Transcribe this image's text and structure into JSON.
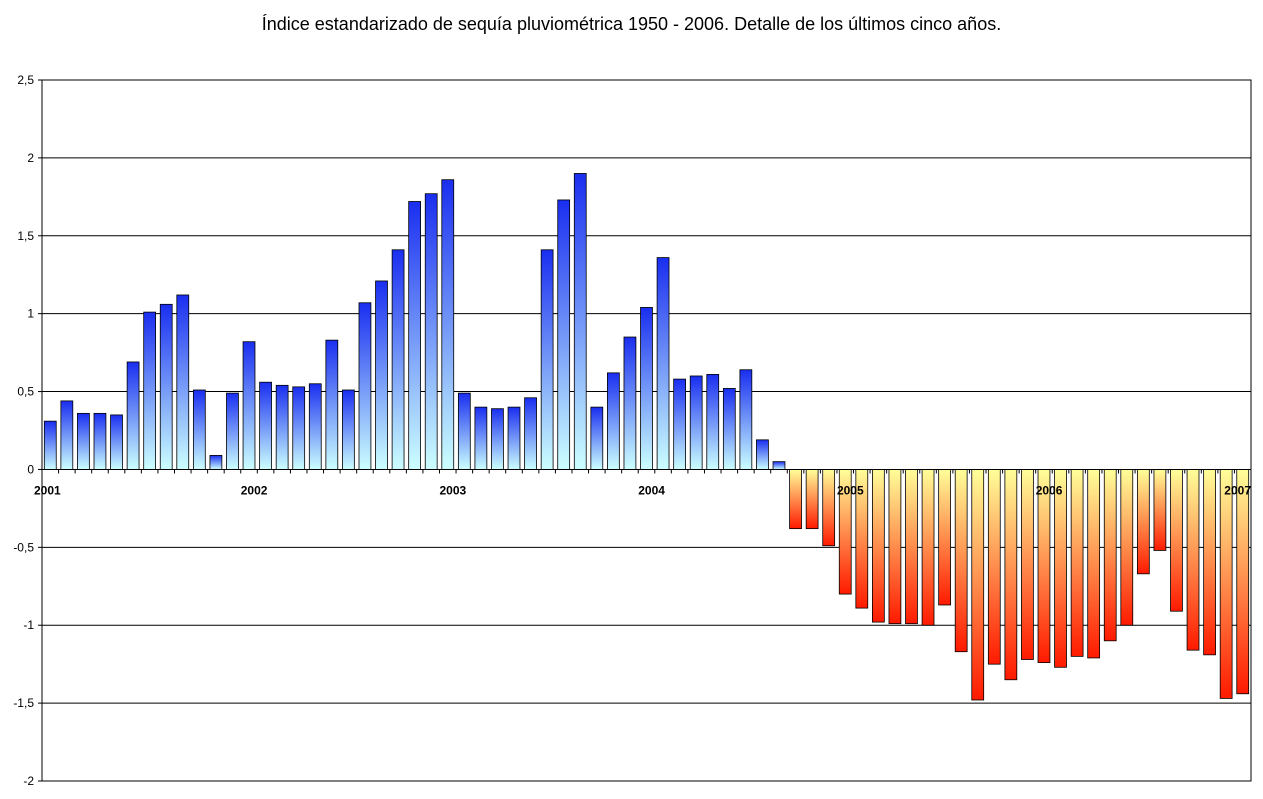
{
  "chart_data": {
    "type": "bar",
    "title": "Índice estandarizado de sequía pluviométrica 1950 - 2006. Detalle de los últimos cinco años.",
    "xlabel": "",
    "ylabel": "",
    "ylim": [
      -2,
      2.5
    ],
    "y_ticks": [
      "2,5",
      "2",
      "1,5",
      "1",
      "0,5",
      "0",
      "-0,5",
      "-1",
      "-1,5",
      "-2"
    ],
    "x_ticks": [
      "2001",
      "2002",
      "2003",
      "2004",
      "2005",
      "2006",
      "2007"
    ],
    "grid": "horizontal",
    "legend": "none",
    "colors": {
      "positive_top": "#1a2ef0",
      "positive_bottom": "#ccffff",
      "negative_top": "#ffff99",
      "negative_bottom": "#ff1a00",
      "axis": "#000000"
    },
    "values": [
      0.31,
      0.44,
      0.36,
      0.36,
      0.35,
      0.69,
      1.01,
      1.06,
      1.12,
      0.51,
      0.09,
      0.49,
      0.82,
      0.56,
      0.54,
      0.53,
      0.55,
      0.83,
      0.51,
      1.07,
      1.21,
      1.41,
      1.72,
      1.77,
      1.86,
      0.49,
      0.4,
      0.39,
      0.4,
      0.46,
      1.41,
      1.73,
      1.9,
      0.4,
      0.62,
      0.85,
      1.04,
      1.36,
      0.58,
      0.6,
      0.61,
      0.52,
      0.64,
      0.19,
      0.05,
      -0.38,
      -0.38,
      -0.49,
      -0.8,
      -0.89,
      -0.98,
      -0.99,
      -0.99,
      -1.0,
      -0.87,
      -1.17,
      -1.48,
      -1.25,
      -1.35,
      -1.22,
      -1.24,
      -1.27,
      -1.2,
      -1.21,
      -1.1,
      -1.0,
      -0.67,
      -0.52,
      -0.91,
      -1.16,
      -1.19,
      -1.47,
      -1.44
    ]
  }
}
